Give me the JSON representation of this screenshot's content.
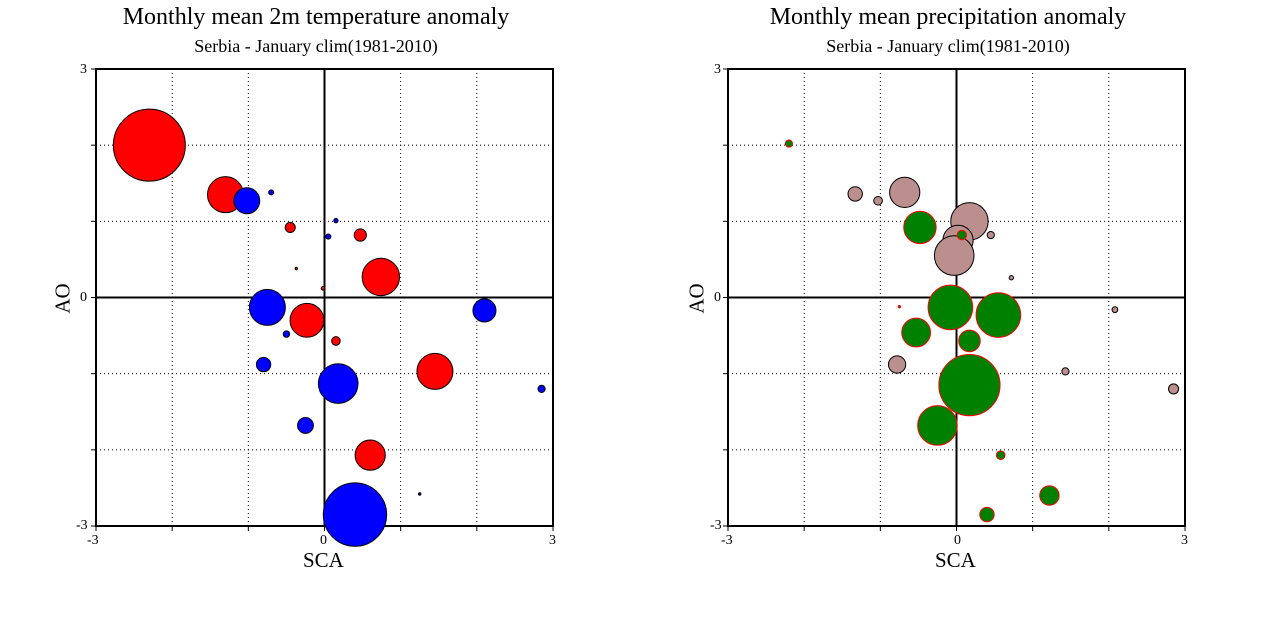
{
  "chart_data": [
    {
      "type": "scatter",
      "title": "Monthly mean 2m temperature anomaly",
      "subtitle": "Serbia - January  clim(1981-2010)",
      "xlabel": "SCA",
      "ylabel": "AO",
      "xlim": [
        -3,
        3
      ],
      "ylim": [
        -3,
        3
      ],
      "x_tick_labels": [
        "-3",
        "0",
        "3"
      ],
      "y_tick_labels": [
        "3",
        "0",
        "-3"
      ],
      "grid": true,
      "zero_lines": true,
      "encoding": "bubble size = anomaly magnitude; red = positive, blue = negative",
      "colors": {
        "positive": "#ff0000",
        "negative": "#0000ff",
        "outline": "#000000"
      },
      "points": [
        {
          "x": -2.3,
          "y": 2.0,
          "size": 1.0,
          "sign": "+"
        },
        {
          "x": -1.3,
          "y": 1.35,
          "size": 0.5,
          "sign": "+"
        },
        {
          "x": -1.02,
          "y": 1.27,
          "size": 0.36,
          "sign": "-"
        },
        {
          "x": -0.7,
          "y": 1.38,
          "size": 0.07,
          "sign": "-"
        },
        {
          "x": -0.45,
          "y": 0.92,
          "size": 0.14,
          "sign": "+"
        },
        {
          "x": 0.15,
          "y": 1.01,
          "size": 0.06,
          "sign": "-"
        },
        {
          "x": 0.05,
          "y": 0.8,
          "size": 0.07,
          "sign": "-"
        },
        {
          "x": 0.47,
          "y": 0.82,
          "size": 0.17,
          "sign": "+"
        },
        {
          "x": 0.74,
          "y": 0.27,
          "size": 0.52,
          "sign": "+"
        },
        {
          "x": -0.37,
          "y": 0.38,
          "size": 0.03,
          "sign": "+"
        },
        {
          "x": -0.02,
          "y": 0.12,
          "size": 0.05,
          "sign": "+"
        },
        {
          "x": -0.75,
          "y": -0.13,
          "size": 0.5,
          "sign": "-"
        },
        {
          "x": -0.23,
          "y": -0.3,
          "size": 0.47,
          "sign": "+"
        },
        {
          "x": -0.5,
          "y": -0.48,
          "size": 0.09,
          "sign": "-"
        },
        {
          "x": 0.15,
          "y": -0.57,
          "size": 0.12,
          "sign": "+"
        },
        {
          "x": 2.1,
          "y": -0.17,
          "size": 0.32,
          "sign": "-"
        },
        {
          "x": -0.8,
          "y": -0.88,
          "size": 0.2,
          "sign": "-"
        },
        {
          "x": 1.45,
          "y": -0.97,
          "size": 0.5,
          "sign": "+"
        },
        {
          "x": 0.18,
          "y": -1.13,
          "size": 0.55,
          "sign": "-"
        },
        {
          "x": 2.85,
          "y": -1.2,
          "size": 0.1,
          "sign": "-"
        },
        {
          "x": -0.25,
          "y": -1.68,
          "size": 0.22,
          "sign": "-"
        },
        {
          "x": 0.6,
          "y": -2.07,
          "size": 0.42,
          "sign": "+"
        },
        {
          "x": 0.4,
          "y": -2.85,
          "size": 0.88,
          "sign": "-"
        },
        {
          "x": 1.25,
          "y": -2.58,
          "size": 0.03,
          "sign": "-"
        }
      ]
    },
    {
      "type": "scatter",
      "title": "Monthly mean precipitation anomaly",
      "subtitle": "Serbia - January  clim(1981-2010)",
      "xlabel": "SCA",
      "ylabel": "AO",
      "xlim": [
        -3,
        3
      ],
      "ylim": [
        -3,
        3
      ],
      "x_tick_labels": [
        "-3",
        "0",
        "3"
      ],
      "y_tick_labels": [
        "3",
        "0",
        "-3"
      ],
      "grid": true,
      "zero_lines": true,
      "encoding": "bubble size = anomaly magnitude; green = positive, rosy-brown = negative",
      "colors": {
        "positive": "#008000",
        "negative": "#bc8f8f",
        "outline_positive": "#ff0000",
        "outline_negative": "#000000"
      },
      "points": [
        {
          "x": -2.2,
          "y": 2.02,
          "size": 0.1,
          "sign": "+"
        },
        {
          "x": -1.33,
          "y": 1.36,
          "size": 0.2,
          "sign": "-"
        },
        {
          "x": -1.03,
          "y": 1.27,
          "size": 0.12,
          "sign": "-"
        },
        {
          "x": -0.68,
          "y": 1.38,
          "size": 0.42,
          "sign": "-"
        },
        {
          "x": -0.48,
          "y": 0.92,
          "size": 0.45,
          "sign": "+"
        },
        {
          "x": 0.17,
          "y": 1.0,
          "size": 0.52,
          "sign": "-"
        },
        {
          "x": 0.02,
          "y": 0.75,
          "size": 0.42,
          "sign": "-"
        },
        {
          "x": -0.03,
          "y": 0.55,
          "size": 0.55,
          "sign": "-"
        },
        {
          "x": 0.07,
          "y": 0.82,
          "size": 0.13,
          "sign": "+"
        },
        {
          "x": 0.45,
          "y": 0.82,
          "size": 0.1,
          "sign": "-"
        },
        {
          "x": 0.72,
          "y": 0.26,
          "size": 0.06,
          "sign": "-"
        },
        {
          "x": -0.08,
          "y": -0.13,
          "size": 0.62,
          "sign": "+"
        },
        {
          "x": 0.55,
          "y": -0.23,
          "size": 0.62,
          "sign": "+"
        },
        {
          "x": -0.75,
          "y": -0.12,
          "size": 0.02,
          "sign": "+"
        },
        {
          "x": 2.08,
          "y": -0.16,
          "size": 0.08,
          "sign": "-"
        },
        {
          "x": -0.53,
          "y": -0.46,
          "size": 0.4,
          "sign": "+"
        },
        {
          "x": 0.17,
          "y": -0.57,
          "size": 0.3,
          "sign": "+"
        },
        {
          "x": -0.78,
          "y": -0.88,
          "size": 0.24,
          "sign": "-"
        },
        {
          "x": 1.43,
          "y": -0.97,
          "size": 0.1,
          "sign": "-"
        },
        {
          "x": 0.17,
          "y": -1.15,
          "size": 0.85,
          "sign": "+"
        },
        {
          "x": 2.85,
          "y": -1.2,
          "size": 0.14,
          "sign": "-"
        },
        {
          "x": -0.25,
          "y": -1.68,
          "size": 0.55,
          "sign": "+"
        },
        {
          "x": 0.58,
          "y": -2.07,
          "size": 0.12,
          "sign": "+"
        },
        {
          "x": 1.22,
          "y": -2.6,
          "size": 0.27,
          "sign": "+"
        },
        {
          "x": 0.4,
          "y": -2.85,
          "size": 0.2,
          "sign": "+"
        }
      ]
    }
  ]
}
